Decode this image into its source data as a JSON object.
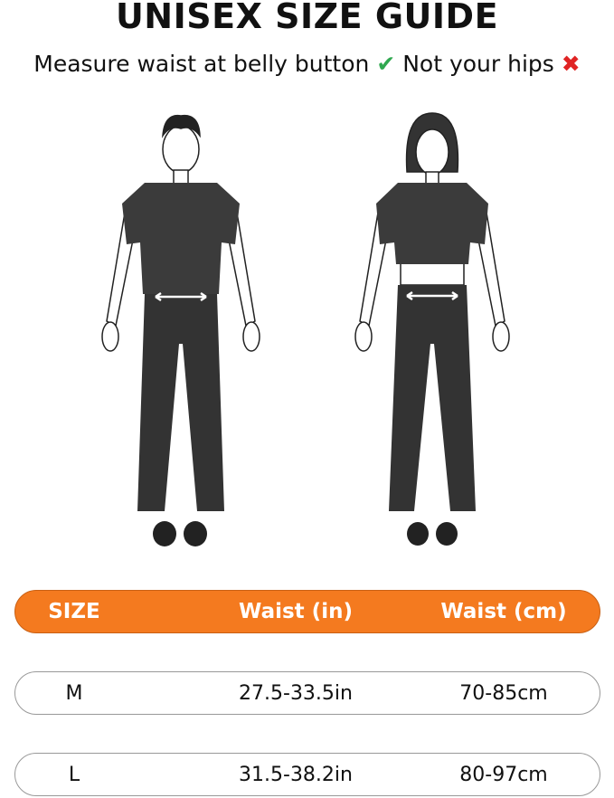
{
  "title": "UNISEX SIZE GUIDE",
  "subtitle": {
    "text1": "Measure waist at belly button",
    "check_icon": "✔",
    "text2": "Not your hips",
    "cross_icon": "✖"
  },
  "colors": {
    "accent": "#f47a1f",
    "check": "#2fa84f",
    "cross": "#e02424"
  },
  "table": {
    "headers": [
      "SIZE",
      "Waist (in)",
      "Waist (cm)"
    ],
    "rows": [
      [
        "M",
        "27.5-33.5in",
        "70-85cm"
      ],
      [
        "L",
        "31.5-38.2in",
        "80-97cm"
      ]
    ]
  }
}
